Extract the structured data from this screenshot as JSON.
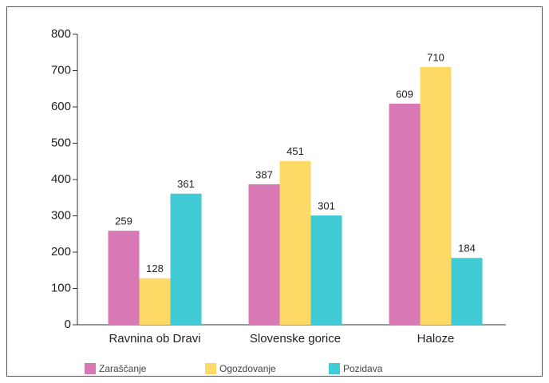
{
  "chart_data": {
    "type": "bar",
    "categories": [
      "Ravnina ob Dravi",
      "Slovenske gorice",
      "Haloze"
    ],
    "series": [
      {
        "name": "Zaraščanje",
        "color": "#d879b5",
        "values": [
          259,
          387,
          609
        ]
      },
      {
        "name": "Ogozdovanje",
        "color": "#ffd966",
        "values": [
          128,
          451,
          710
        ]
      },
      {
        "name": "Pozidava",
        "color": "#40cbd6",
        "values": [
          361,
          301,
          184
        ]
      }
    ],
    "ylim": [
      0,
      800
    ],
    "yticks": [
      0,
      100,
      200,
      300,
      400,
      500,
      600,
      700,
      800
    ],
    "legend": "bottom"
  }
}
